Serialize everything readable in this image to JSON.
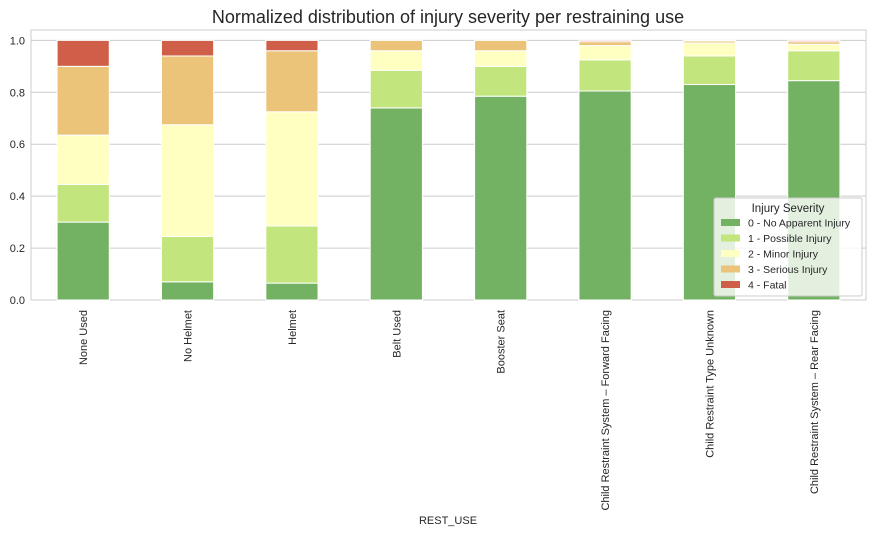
{
  "chart_data": {
    "type": "bar",
    "stacked": true,
    "title": "Normalized distribution of injury severity per restraining use",
    "xlabel": "REST_USE",
    "ylabel": "",
    "ylim": [
      0,
      1.04
    ],
    "yticks": [
      "0.0",
      "0.2",
      "0.4",
      "0.6",
      "0.8",
      "1.0"
    ],
    "grid": true,
    "legend_title": "Injury Severity",
    "legend_position": "lower-right",
    "categories": [
      "None Used",
      "No Helmet",
      "Helmet",
      "Belt Used",
      "Booster Seat",
      "Child Restraint System – Forward Facing",
      "Child Restraint Type Unknown",
      "Child Restraint System – Rear Facing"
    ],
    "series": [
      {
        "name": "0 - No Apparent Injury",
        "color": "#73b263",
        "values": [
          0.3,
          0.07,
          0.065,
          0.74,
          0.785,
          0.805,
          0.83,
          0.845
        ]
      },
      {
        "name": "1 - Possible Injury",
        "color": "#c3e57e",
        "values": [
          0.145,
          0.175,
          0.22,
          0.145,
          0.115,
          0.12,
          0.11,
          0.115
        ]
      },
      {
        "name": "2 - Minor Injury",
        "color": "#ffffc1",
        "values": [
          0.19,
          0.43,
          0.44,
          0.075,
          0.06,
          0.055,
          0.05,
          0.025
        ]
      },
      {
        "name": "3 - Serious Injury",
        "color": "#ebc379",
        "values": [
          0.265,
          0.265,
          0.235,
          0.04,
          0.04,
          0.015,
          0.008,
          0.01
        ]
      },
      {
        "name": "4 - Fatal",
        "color": "#cf5f48",
        "values": [
          0.1,
          0.06,
          0.04,
          0.0,
          0.0,
          0.005,
          0.002,
          0.005
        ]
      }
    ]
  }
}
